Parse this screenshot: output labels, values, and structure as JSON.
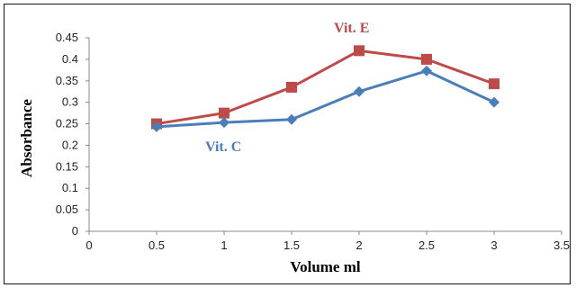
{
  "chart_data": {
    "type": "line",
    "title": "",
    "xlabel": "Volume ml",
    "ylabel": "Absorbance",
    "x": [
      0.5,
      1,
      1.5,
      2,
      2.5,
      3
    ],
    "xlim": [
      0,
      3.5
    ],
    "ylim": [
      0,
      0.45
    ],
    "xticks": [
      "0",
      "0.5",
      "1",
      "1.5",
      "2",
      "2.5",
      "3",
      "3.5"
    ],
    "yticks": [
      "0",
      "0.05",
      "0.1",
      "0.15",
      "0.2",
      "0.25",
      "0.3",
      "0.35",
      "0.4",
      "0.45"
    ],
    "grid": false,
    "legend": "none",
    "series": [
      {
        "name": "Vit. E",
        "color": "#BE4B48",
        "marker": "square",
        "values": [
          0.25,
          0.275,
          0.335,
          0.42,
          0.4,
          0.343
        ]
      },
      {
        "name": "Vit. C",
        "color": "#4A7EBB",
        "marker": "diamond",
        "values": [
          0.243,
          0.253,
          0.26,
          0.325,
          0.373,
          0.3
        ]
      }
    ]
  }
}
